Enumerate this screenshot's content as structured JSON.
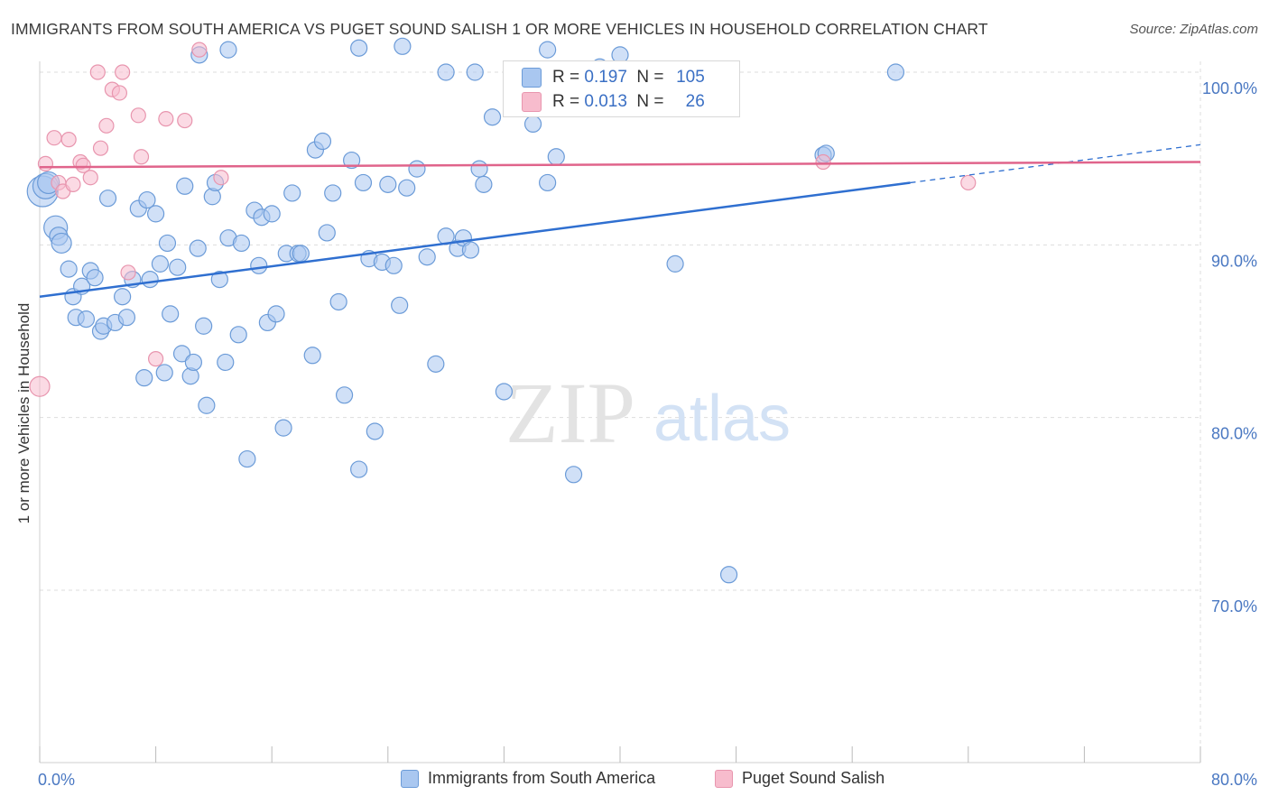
{
  "header": {
    "title": "IMMIGRANTS FROM SOUTH AMERICA VS PUGET SOUND SALISH 1 OR MORE VEHICLES IN HOUSEHOLD CORRELATION CHART",
    "source": "Source: ZipAtlas.com"
  },
  "watermark": {
    "zip": "ZIP",
    "atlas": "atlas"
  },
  "stats": {
    "row1": {
      "r_label": "R =",
      "r_value": "0.197",
      "n_label": "N =",
      "n_value": "105"
    },
    "row2": {
      "r_label": "R =",
      "r_value": "0.013",
      "n_label": "N =",
      "n_value": "26"
    }
  },
  "legend": {
    "series1": "Immigrants from South America",
    "series2": "Puget Sound Salish"
  },
  "colors": {
    "blue_fill": "#a9c7f0",
    "blue_stroke": "#6b9bd8",
    "blue_line": "#2f6fd0",
    "pink_fill": "#f7bccd",
    "pink_stroke": "#e895ae",
    "pink_line": "#e0648b",
    "tick_label": "#4a78c2",
    "grid": "#dddddd"
  },
  "chart_data": {
    "type": "scatter",
    "title": "IMMIGRANTS FROM SOUTH AMERICA VS PUGET SOUND SALISH 1 OR MORE VEHICLES IN HOUSEHOLD CORRELATION CHART",
    "xlabel": "",
    "ylabel": "1 or more Vehicles in Household",
    "xlim": [
      0,
      80
    ],
    "ylim": [
      60.5,
      101.5
    ],
    "x_tick_labels": [
      "0.0%",
      "80.0%"
    ],
    "y_ticks": [
      70,
      80,
      90,
      100
    ],
    "y_tick_labels": [
      "70.0%",
      "80.0%",
      "90.0%",
      "100.0%"
    ],
    "grid": true,
    "legend_position": "bottom",
    "series": [
      {
        "name": "Immigrants from South America",
        "color": "#a9c7f0",
        "r": "0.197",
        "n": "105",
        "trend": {
          "x0": 0,
          "y0": 87.0,
          "x1": 80,
          "y1": 95.8,
          "solid_until_x": 60
        },
        "points": [
          [
            0.2,
            93.1,
            17
          ],
          [
            0.4,
            93.4,
            14
          ],
          [
            0.6,
            93.6,
            12
          ],
          [
            1.1,
            91.0,
            13
          ],
          [
            1.3,
            90.5,
            10
          ],
          [
            1.5,
            90.1,
            11
          ],
          [
            2.0,
            88.6,
            9
          ],
          [
            2.3,
            87.0,
            9
          ],
          [
            2.5,
            85.8,
            9
          ],
          [
            2.9,
            87.6,
            9
          ],
          [
            3.2,
            85.7,
            9
          ],
          [
            3.5,
            88.5,
            9
          ],
          [
            3.8,
            88.1,
            9
          ],
          [
            4.2,
            85.0,
            9
          ],
          [
            4.4,
            85.3,
            9
          ],
          [
            4.7,
            92.7,
            9
          ],
          [
            5.2,
            85.5,
            9
          ],
          [
            5.7,
            87.0,
            9
          ],
          [
            6.0,
            85.8,
            9
          ],
          [
            6.4,
            88.0,
            9
          ],
          [
            6.8,
            92.1,
            9
          ],
          [
            7.2,
            82.3,
            9
          ],
          [
            7.4,
            92.6,
            9
          ],
          [
            7.6,
            88.0,
            9
          ],
          [
            8.0,
            91.8,
            9
          ],
          [
            8.3,
            88.9,
            9
          ],
          [
            8.6,
            82.6,
            9
          ],
          [
            8.8,
            90.1,
            9
          ],
          [
            9.0,
            86.0,
            9
          ],
          [
            9.5,
            88.7,
            9
          ],
          [
            9.8,
            83.7,
            9
          ],
          [
            10.0,
            93.4,
            9
          ],
          [
            10.4,
            82.4,
            9
          ],
          [
            10.6,
            83.2,
            9
          ],
          [
            10.9,
            89.8,
            9
          ],
          [
            11.3,
            85.3,
            9
          ],
          [
            11.5,
            80.7,
            9
          ],
          [
            11.9,
            92.8,
            9
          ],
          [
            12.1,
            93.6,
            9
          ],
          [
            12.4,
            88.0,
            9
          ],
          [
            12.8,
            83.2,
            9
          ],
          [
            13.0,
            90.4,
            9
          ],
          [
            13.7,
            84.8,
            9
          ],
          [
            13.9,
            90.1,
            9
          ],
          [
            14.3,
            77.6,
            9
          ],
          [
            14.8,
            92.0,
            9
          ],
          [
            15.1,
            88.8,
            9
          ],
          [
            15.3,
            91.6,
            9
          ],
          [
            15.7,
            85.5,
            9
          ],
          [
            16.0,
            91.8,
            9
          ],
          [
            16.3,
            86.0,
            9
          ],
          [
            16.8,
            79.4,
            9
          ],
          [
            17.0,
            89.5,
            9
          ],
          [
            17.4,
            93.0,
            9
          ],
          [
            17.8,
            89.5,
            9
          ],
          [
            18.0,
            89.5,
            9
          ],
          [
            18.8,
            83.6,
            9
          ],
          [
            19.0,
            95.5,
            9
          ],
          [
            19.5,
            96.0,
            9
          ],
          [
            19.8,
            90.7,
            9
          ],
          [
            20.2,
            93.0,
            9
          ],
          [
            20.6,
            86.7,
            9
          ],
          [
            21.0,
            81.3,
            9
          ],
          [
            21.5,
            94.9,
            9
          ],
          [
            22.0,
            77.0,
            9
          ],
          [
            22.3,
            93.6,
            9
          ],
          [
            22.7,
            89.2,
            9
          ],
          [
            23.1,
            79.2,
            9
          ],
          [
            23.6,
            89.0,
            9
          ],
          [
            24.0,
            93.5,
            9
          ],
          [
            24.4,
            88.8,
            9
          ],
          [
            24.8,
            86.5,
            9
          ],
          [
            25.3,
            93.3,
            9
          ],
          [
            26.0,
            94.4,
            9
          ],
          [
            26.7,
            89.3,
            9
          ],
          [
            27.3,
            83.1,
            9
          ],
          [
            28.0,
            90.5,
            9
          ],
          [
            28.8,
            89.8,
            9
          ],
          [
            29.2,
            90.4,
            9
          ],
          [
            29.7,
            89.7,
            9
          ],
          [
            30.3,
            94.4,
            9
          ],
          [
            30.6,
            93.5,
            9
          ],
          [
            31.2,
            97.4,
            9
          ],
          [
            32.0,
            81.5,
            9
          ],
          [
            32.7,
            98.0,
            9
          ],
          [
            34.0,
            97.0,
            9
          ],
          [
            35.0,
            93.6,
            9
          ],
          [
            35.6,
            95.1,
            9
          ],
          [
            36.8,
            76.7,
            9
          ],
          [
            38.6,
            100.3,
            9
          ],
          [
            43.8,
            88.9,
            9
          ],
          [
            47.5,
            70.9,
            9
          ],
          [
            54.0,
            95.2,
            9
          ],
          [
            54.2,
            95.3,
            9
          ],
          [
            59.0,
            100.0,
            9
          ],
          [
            10.0,
            101.8,
            9
          ],
          [
            13.0,
            101.3,
            9
          ],
          [
            16.0,
            102.6,
            9
          ],
          [
            25.0,
            101.5,
            9
          ],
          [
            28.0,
            100.0,
            9
          ],
          [
            30.0,
            100.0,
            9
          ],
          [
            35.0,
            101.3,
            9
          ],
          [
            40.0,
            101.0,
            9
          ],
          [
            11.0,
            101.0,
            9
          ],
          [
            22.0,
            101.4,
            9
          ],
          [
            33.0,
            101.9,
            9
          ]
        ]
      },
      {
        "name": "Puget Sound Salish",
        "color": "#f7bccd",
        "r": "0.013",
        "n": "26",
        "trend": {
          "x0": 0,
          "y0": 94.5,
          "x1": 80,
          "y1": 94.8
        },
        "points": [
          [
            0.0,
            81.8,
            11
          ],
          [
            0.4,
            94.7,
            8
          ],
          [
            1.0,
            96.2,
            8
          ],
          [
            1.3,
            93.6,
            8
          ],
          [
            1.6,
            93.1,
            8
          ],
          [
            2.0,
            96.1,
            8
          ],
          [
            2.3,
            93.5,
            8
          ],
          [
            2.8,
            94.8,
            8
          ],
          [
            3.0,
            94.6,
            8
          ],
          [
            3.5,
            93.9,
            8
          ],
          [
            4.2,
            95.6,
            8
          ],
          [
            4.6,
            96.9,
            8
          ],
          [
            5.0,
            99.0,
            8
          ],
          [
            5.5,
            98.8,
            8
          ],
          [
            6.1,
            88.4,
            8
          ],
          [
            6.8,
            97.5,
            8
          ],
          [
            7.0,
            95.1,
            8
          ],
          [
            8.0,
            83.4,
            8
          ],
          [
            8.7,
            97.3,
            8
          ],
          [
            10.0,
            97.2,
            8
          ],
          [
            12.5,
            93.9,
            8
          ],
          [
            54.0,
            94.8,
            8
          ],
          [
            64.0,
            93.6,
            8
          ],
          [
            4.0,
            100.0,
            8
          ],
          [
            5.7,
            100.0,
            8
          ],
          [
            11.0,
            101.3,
            8
          ]
        ]
      }
    ]
  }
}
